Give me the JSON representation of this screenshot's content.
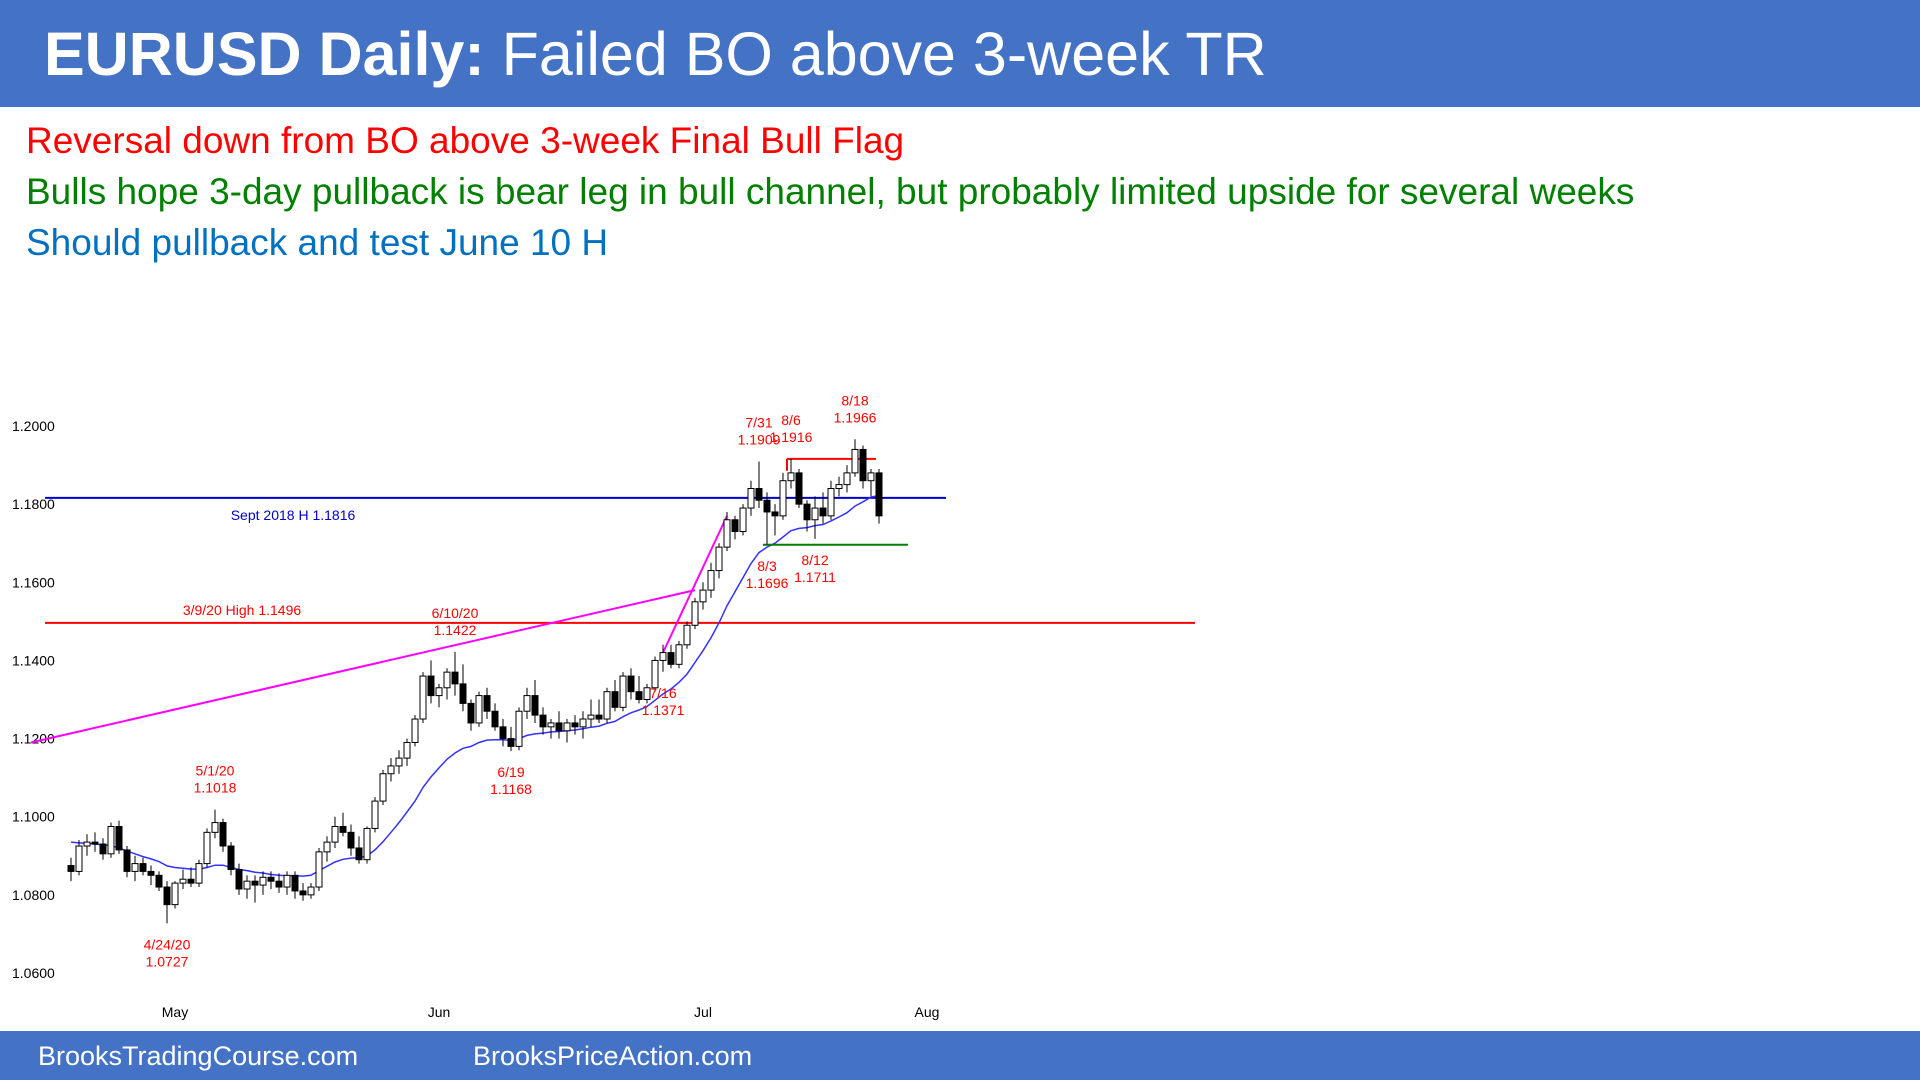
{
  "header": {
    "title_bold": "EURUSD Daily:",
    "title_rest": " Failed BO above 3-week TR"
  },
  "notes": [
    {
      "text": "Reversal down from BO above 3-week Final Bull Flag",
      "color": "#ff0000"
    },
    {
      "text": "Bulls hope 3-day pullback is bear leg in bull channel, but probably limited upside for several weeks",
      "color": "#008000"
    },
    {
      "text": "Should pullback and test June 10 H",
      "color": "#0070c0"
    }
  ],
  "footer": {
    "left": "BrooksTradingCourse.com",
    "right": "BrooksPriceAction.com"
  },
  "chart_data": {
    "type": "candlestick",
    "title": "",
    "xlabel": "",
    "ylabel": "",
    "ylim": [
      1.055,
      1.208
    ],
    "y_ticks": [
      "1.2000",
      "1.1800",
      "1.1600",
      "1.1400",
      "1.1200",
      "1.1000",
      "1.0800",
      "1.0600"
    ],
    "y_tick_values": [
      1.2,
      1.18,
      1.16,
      1.14,
      1.12,
      1.1,
      1.08,
      1.06
    ],
    "x_ticks": [
      {
        "label": "May",
        "bar": 13
      },
      {
        "label": "Jun",
        "bar": 46
      },
      {
        "label": "Jul",
        "bar": 79
      },
      {
        "label": "Aug",
        "bar": 107
      }
    ],
    "colors": {
      "bull_body": "#ffffff",
      "bear_body": "#000000",
      "wick": "#000000",
      "ema": "#3333ff",
      "sept_line": "#0000cc",
      "march_line": "#ff0000",
      "trendline": "#ff00ff",
      "range_top": "#ff0000",
      "range_bottom": "#008000",
      "annotation": "#ff0000",
      "sept_label": "#0000cc"
    },
    "ohlc": [
      [
        1.0875,
        1.0895,
        1.0835,
        1.086
      ],
      [
        1.086,
        1.094,
        1.085,
        1.0925
      ],
      [
        1.0925,
        1.0955,
        1.09,
        1.0935
      ],
      [
        1.0935,
        1.096,
        1.091,
        1.093
      ],
      [
        1.093,
        1.0945,
        1.089,
        1.0905
      ],
      [
        1.0905,
        1.0985,
        1.0895,
        1.0975
      ],
      [
        1.0975,
        1.099,
        1.0905,
        1.0915
      ],
      [
        1.0915,
        1.0925,
        1.0845,
        1.086
      ],
      [
        1.086,
        1.09,
        1.0835,
        1.088
      ],
      [
        1.088,
        1.0895,
        1.085,
        1.086
      ],
      [
        1.086,
        1.0875,
        1.0825,
        1.085
      ],
      [
        1.085,
        1.086,
        1.081,
        1.082
      ],
      [
        1.082,
        1.0835,
        1.0727,
        1.0775
      ],
      [
        1.0775,
        1.0835,
        1.0765,
        1.083
      ],
      [
        1.083,
        1.0865,
        1.0815,
        1.084
      ],
      [
        1.084,
        1.087,
        1.082,
        1.083
      ],
      [
        1.083,
        1.089,
        1.082,
        1.088
      ],
      [
        1.088,
        1.097,
        1.087,
        1.096
      ],
      [
        1.096,
        1.1018,
        1.0945,
        1.0985
      ],
      [
        1.0985,
        1.0995,
        1.091,
        1.0925
      ],
      [
        1.0925,
        1.0935,
        1.085,
        1.0865
      ],
      [
        1.0865,
        1.088,
        1.08,
        1.0815
      ],
      [
        1.0815,
        1.085,
        1.079,
        1.0835
      ],
      [
        1.0835,
        1.085,
        1.078,
        1.0825
      ],
      [
        1.0825,
        1.086,
        1.08,
        1.0845
      ],
      [
        1.0845,
        1.086,
        1.0815,
        1.0835
      ],
      [
        1.0835,
        1.0855,
        1.0805,
        1.082
      ],
      [
        1.082,
        1.086,
        1.08,
        1.085
      ],
      [
        1.085,
        1.086,
        1.079,
        1.081
      ],
      [
        1.081,
        1.083,
        1.0785,
        1.08
      ],
      [
        1.08,
        1.083,
        1.079,
        1.082
      ],
      [
        1.082,
        1.092,
        1.081,
        1.091
      ],
      [
        1.091,
        1.095,
        1.0885,
        1.0935
      ],
      [
        1.0935,
        1.1,
        1.092,
        1.0975
      ],
      [
        1.0975,
        1.101,
        1.095,
        1.096
      ],
      [
        1.096,
        1.098,
        1.09,
        1.092
      ],
      [
        1.092,
        1.095,
        1.088,
        1.089
      ],
      [
        1.089,
        1.0975,
        1.088,
        1.097
      ],
      [
        1.097,
        1.105,
        1.096,
        1.104
      ],
      [
        1.104,
        1.112,
        1.103,
        1.111
      ],
      [
        1.111,
        1.115,
        1.109,
        1.113
      ],
      [
        1.113,
        1.117,
        1.111,
        1.115
      ],
      [
        1.115,
        1.12,
        1.113,
        1.119
      ],
      [
        1.119,
        1.126,
        1.118,
        1.125
      ],
      [
        1.125,
        1.137,
        1.124,
        1.136
      ],
      [
        1.136,
        1.14,
        1.129,
        1.131
      ],
      [
        1.131,
        1.134,
        1.128,
        1.133
      ],
      [
        1.133,
        1.138,
        1.13,
        1.137
      ],
      [
        1.137,
        1.1422,
        1.131,
        1.134
      ],
      [
        1.134,
        1.139,
        1.127,
        1.129
      ],
      [
        1.129,
        1.13,
        1.122,
        1.124
      ],
      [
        1.124,
        1.132,
        1.123,
        1.131
      ],
      [
        1.131,
        1.133,
        1.125,
        1.127
      ],
      [
        1.127,
        1.129,
        1.122,
        1.123
      ],
      [
        1.123,
        1.125,
        1.118,
        1.12
      ],
      [
        1.12,
        1.123,
        1.1168,
        1.118
      ],
      [
        1.118,
        1.128,
        1.117,
        1.127
      ],
      [
        1.127,
        1.133,
        1.125,
        1.131
      ],
      [
        1.131,
        1.135,
        1.124,
        1.126
      ],
      [
        1.126,
        1.128,
        1.121,
        1.123
      ],
      [
        1.123,
        1.125,
        1.12,
        1.124
      ],
      [
        1.124,
        1.127,
        1.12,
        1.122
      ],
      [
        1.122,
        1.125,
        1.119,
        1.124
      ],
      [
        1.124,
        1.126,
        1.121,
        1.123
      ],
      [
        1.123,
        1.127,
        1.12,
        1.125
      ],
      [
        1.125,
        1.13,
        1.123,
        1.126
      ],
      [
        1.126,
        1.13,
        1.124,
        1.125
      ],
      [
        1.125,
        1.133,
        1.124,
        1.132
      ],
      [
        1.132,
        1.135,
        1.127,
        1.128
      ],
      [
        1.128,
        1.137,
        1.127,
        1.136
      ],
      [
        1.136,
        1.138,
        1.13,
        1.132
      ],
      [
        1.132,
        1.136,
        1.129,
        1.13
      ],
      [
        1.13,
        1.134,
        1.129,
        1.133
      ],
      [
        1.133,
        1.141,
        1.132,
        1.14
      ],
      [
        1.14,
        1.144,
        1.1371,
        1.142
      ],
      [
        1.142,
        1.144,
        1.138,
        1.139
      ],
      [
        1.139,
        1.145,
        1.138,
        1.144
      ],
      [
        1.144,
        1.15,
        1.143,
        1.149
      ],
      [
        1.149,
        1.156,
        1.148,
        1.155
      ],
      [
        1.155,
        1.16,
        1.153,
        1.158
      ],
      [
        1.158,
        1.165,
        1.156,
        1.163
      ],
      [
        1.163,
        1.17,
        1.161,
        1.169
      ],
      [
        1.169,
        1.178,
        1.168,
        1.176
      ],
      [
        1.176,
        1.177,
        1.171,
        1.173
      ],
      [
        1.173,
        1.18,
        1.172,
        1.179
      ],
      [
        1.179,
        1.186,
        1.177,
        1.184
      ],
      [
        1.184,
        1.1909,
        1.179,
        1.181
      ],
      [
        1.181,
        1.183,
        1.1696,
        1.178
      ],
      [
        1.178,
        1.18,
        1.172,
        1.177
      ],
      [
        1.177,
        1.188,
        1.176,
        1.186
      ],
      [
        1.186,
        1.1916,
        1.184,
        1.188
      ],
      [
        1.188,
        1.189,
        1.179,
        1.18
      ],
      [
        1.18,
        1.181,
        1.173,
        1.176
      ],
      [
        1.176,
        1.182,
        1.1711,
        1.179
      ],
      [
        1.179,
        1.183,
        1.175,
        1.177
      ],
      [
        1.177,
        1.186,
        1.176,
        1.184
      ],
      [
        1.184,
        1.187,
        1.182,
        1.185
      ],
      [
        1.185,
        1.19,
        1.183,
        1.188
      ],
      [
        1.188,
        1.1966,
        1.187,
        1.194
      ],
      [
        1.194,
        1.195,
        1.184,
        1.186
      ],
      [
        1.186,
        1.189,
        1.182,
        1.188
      ],
      [
        1.188,
        1.189,
        1.175,
        1.177
      ]
    ],
    "ema": [
      1.0935,
      1.0933,
      1.0932,
      1.093,
      1.0928,
      1.0926,
      1.092,
      1.0912,
      1.0905,
      1.0898,
      1.0892,
      1.0885,
      1.0874,
      1.087,
      1.0868,
      1.0866,
      1.0866,
      1.087,
      1.0876,
      1.0876,
      1.087,
      1.0865,
      1.0862,
      1.0858,
      1.0856,
      1.0852,
      1.085,
      1.0849,
      1.0849,
      1.0848,
      1.085,
      1.0862,
      1.0873,
      1.0884,
      1.0891,
      1.0894,
      1.0895,
      1.09,
      1.0915,
      1.0936,
      1.096,
      1.0985,
      1.1012,
      1.104,
      1.1075,
      1.1102,
      1.1125,
      1.1147,
      1.1163,
      1.1175,
      1.118,
      1.119,
      1.1196,
      1.1197,
      1.1197,
      1.1195,
      1.12,
      1.1208,
      1.1212,
      1.1214,
      1.1217,
      1.1218,
      1.122,
      1.1222,
      1.1225,
      1.1229,
      1.1232,
      1.1239,
      1.1244,
      1.1256,
      1.1266,
      1.1273,
      1.1282,
      1.1298,
      1.1314,
      1.1327,
      1.1344,
      1.1365,
      1.1395,
      1.1425,
      1.1458,
      1.1496,
      1.154,
      1.1576,
      1.1612,
      1.1648,
      1.1676,
      1.169,
      1.17,
      1.1716,
      1.1732,
      1.1738,
      1.174,
      1.1745,
      1.1748,
      1.1757,
      1.1767,
      1.1778,
      1.1795,
      1.1806,
      1.1818,
      1.1822
    ],
    "horizontal_lines": [
      {
        "name": "Sept 2018 H",
        "label": "Sept 2018 H 1.1816",
        "value": 1.1816
      },
      {
        "name": "3/9/20 High",
        "label": "3/9/20 High 1.1496",
        "value": 1.1496
      }
    ],
    "range_lines": [
      {
        "name": "range-top",
        "value": 1.1916,
        "from_bar": 90,
        "to_bar": 100
      },
      {
        "name": "range-bottom",
        "value": 1.1696,
        "from_bar": 87,
        "to_bar": 104
      }
    ],
    "trendlines": [
      {
        "name": "trendline-june",
        "from": {
          "bar": -5,
          "value": 1.119
        },
        "to": {
          "bar": 78,
          "value": 1.158
        }
      },
      {
        "name": "trendline-spike",
        "from": {
          "bar": 74,
          "value": 1.142
        },
        "to": {
          "bar": 82,
          "value": 1.177
        }
      }
    ],
    "annotations": [
      {
        "bar": 12,
        "lines": [
          "4/24/20",
          "1.0727"
        ],
        "position": "below",
        "value": 1.0727
      },
      {
        "bar": 18,
        "lines": [
          "5/1/20",
          "1.1018"
        ],
        "position": "above",
        "value": 1.1018
      },
      {
        "bar": 48,
        "lines": [
          "6/10/20",
          "1.1422"
        ],
        "position": "above",
        "value": 1.1422
      },
      {
        "bar": 55,
        "lines": [
          "6/19",
          "1.1168"
        ],
        "position": "below",
        "value": 1.1168
      },
      {
        "bar": 74,
        "lines": [
          "7/16",
          "1.1371"
        ],
        "position": "below",
        "value": 1.1371
      },
      {
        "bar": 86,
        "lines": [
          "7/31",
          "1.1909"
        ],
        "position": "above",
        "value": 1.1909
      },
      {
        "bar": 87,
        "lines": [
          "8/3",
          "1.1696"
        ],
        "position": "below",
        "value": 1.1696
      },
      {
        "bar": 90,
        "lines": [
          "8/6",
          "1.1916"
        ],
        "position": "above",
        "value": 1.1916
      },
      {
        "bar": 93,
        "lines": [
          "8/12",
          "1.1711"
        ],
        "position": "below",
        "value": 1.1711
      },
      {
        "bar": 98,
        "lines": [
          "8/18",
          "1.1966"
        ],
        "position": "above",
        "value": 1.1966
      }
    ]
  }
}
